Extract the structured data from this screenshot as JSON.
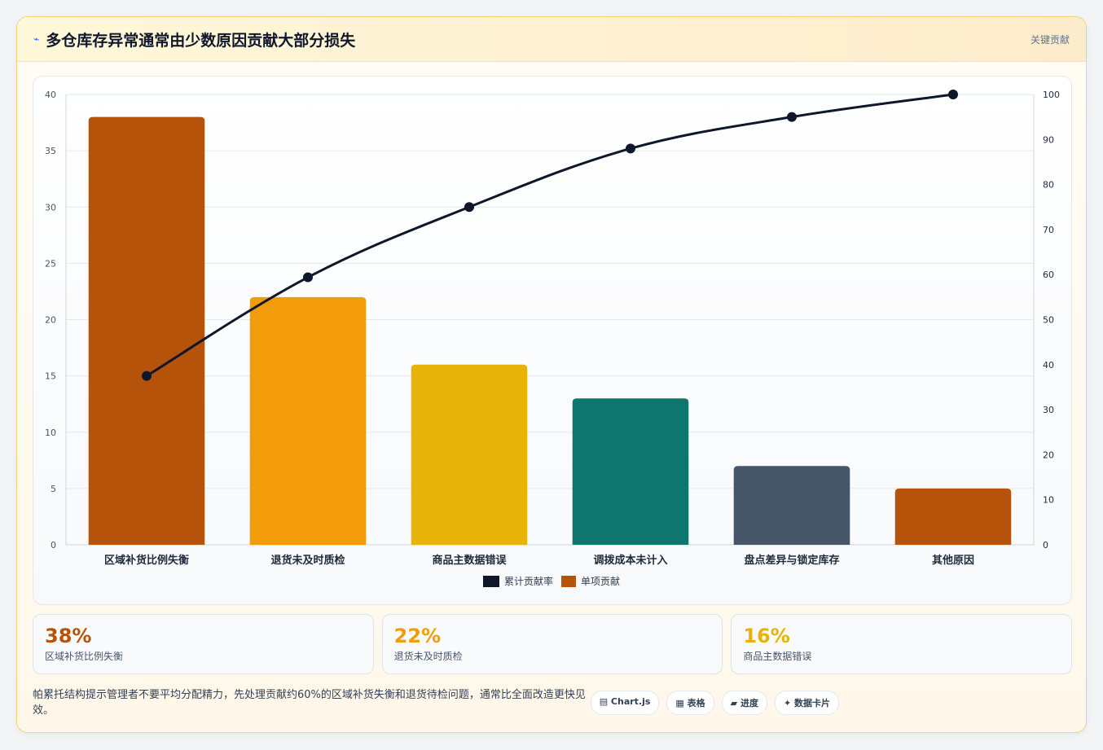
{
  "header": {
    "icon": "⌁",
    "title": "多仓库存异常通常由少数原因贡献大部分损失",
    "tag": "关键贡献"
  },
  "chart_data": {
    "type": "bar",
    "categories": [
      "区域补货比例失衡",
      "退货未及时质检",
      "商品主数据错误",
      "调拨成本未计入",
      "盘点差异与锁定库存",
      "其他原因"
    ],
    "series": [
      {
        "name": "累计贡献率",
        "type": "line",
        "axis": "right",
        "values": [
          37.5,
          59.4,
          75.0,
          88.0,
          95.0,
          100.0
        ],
        "color": "#0f172a"
      },
      {
        "name": "单项贡献",
        "type": "bar",
        "axis": "left",
        "values": [
          38,
          22,
          16,
          13,
          7,
          5
        ],
        "color": "#b45309"
      }
    ],
    "bar_colors": [
      "#b45309",
      "#f39c0b",
      "#e8b308",
      "#0f766e",
      "#475569",
      "#b45309"
    ],
    "ylim": [
      0,
      40
    ],
    "y_ticks": [
      0,
      5,
      10,
      15,
      20,
      25,
      30,
      35,
      40
    ],
    "y2lim": [
      0,
      100
    ],
    "y2_ticks": [
      0,
      10,
      20,
      30,
      40,
      50,
      60,
      70,
      80,
      90,
      100
    ],
    "grid": true,
    "legend": "bottom"
  },
  "stats": [
    {
      "value": "38%",
      "label": "区域补货比例失衡",
      "color": "#b45309"
    },
    {
      "value": "22%",
      "label": "退货未及时质检",
      "color": "#f39c0b"
    },
    {
      "value": "16%",
      "label": "商品主数据错误",
      "color": "#e8b308"
    }
  ],
  "footer": {
    "note": "帕累托结构提示管理者不要平均分配精力，先处理贡献约60%的区域补货失衡和退货待检问题，通常比全面改造更快见效。",
    "chips": [
      "▤ Chart.js",
      "▦ 表格",
      "▰ 进度",
      "✦ 数据卡片"
    ]
  }
}
